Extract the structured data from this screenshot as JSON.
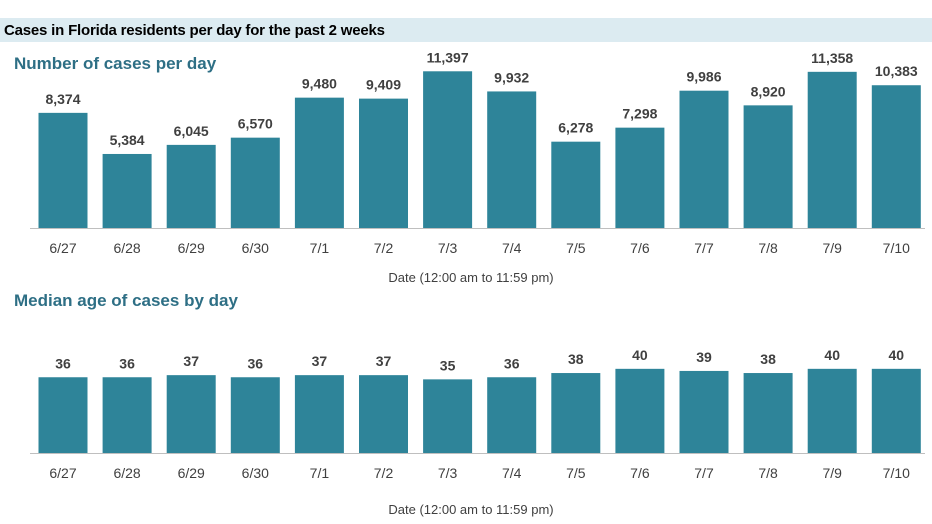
{
  "header": {
    "title": "Cases in Florida residents per day for the past 2 weeks"
  },
  "colors": {
    "bar": "#2e8499",
    "title": "#2e6f85",
    "header_bg": "#dcebf1"
  },
  "chart_data": [
    {
      "type": "bar",
      "title": "Number of cases per day",
      "xlabel": "Date (12:00 am to 11:59 pm)",
      "ylabel": "",
      "categories": [
        "6/27",
        "6/28",
        "6/29",
        "6/30",
        "7/1",
        "7/2",
        "7/3",
        "7/4",
        "7/5",
        "7/6",
        "7/7",
        "7/8",
        "7/9",
        "7/10"
      ],
      "values": [
        8374,
        5384,
        6045,
        6570,
        9480,
        9409,
        11397,
        9932,
        6278,
        7298,
        9986,
        8920,
        11358,
        10383
      ],
      "value_labels": [
        "8,374",
        "5,384",
        "6,045",
        "6,570",
        "9,480",
        "9,409",
        "11,397",
        "9,932",
        "6,278",
        "7,298",
        "9,986",
        "8,920",
        "11,358",
        "10,383"
      ],
      "ylim": [
        0,
        12000
      ],
      "grid": false,
      "legend": "none"
    },
    {
      "type": "bar",
      "title": "Median age of cases by day",
      "xlabel": "Date (12:00 am to 11:59 pm)",
      "ylabel": "",
      "categories": [
        "6/27",
        "6/28",
        "6/29",
        "6/30",
        "7/1",
        "7/2",
        "7/3",
        "7/4",
        "7/5",
        "7/6",
        "7/7",
        "7/8",
        "7/9",
        "7/10"
      ],
      "values": [
        36,
        36,
        37,
        36,
        37,
        37,
        35,
        36,
        38,
        40,
        39,
        38,
        40,
        40
      ],
      "value_labels": [
        "36",
        "36",
        "37",
        "36",
        "37",
        "37",
        "35",
        "36",
        "38",
        "40",
        "39",
        "38",
        "40",
        "40"
      ],
      "ylim": [
        0,
        48
      ],
      "grid": false,
      "legend": "none"
    }
  ]
}
